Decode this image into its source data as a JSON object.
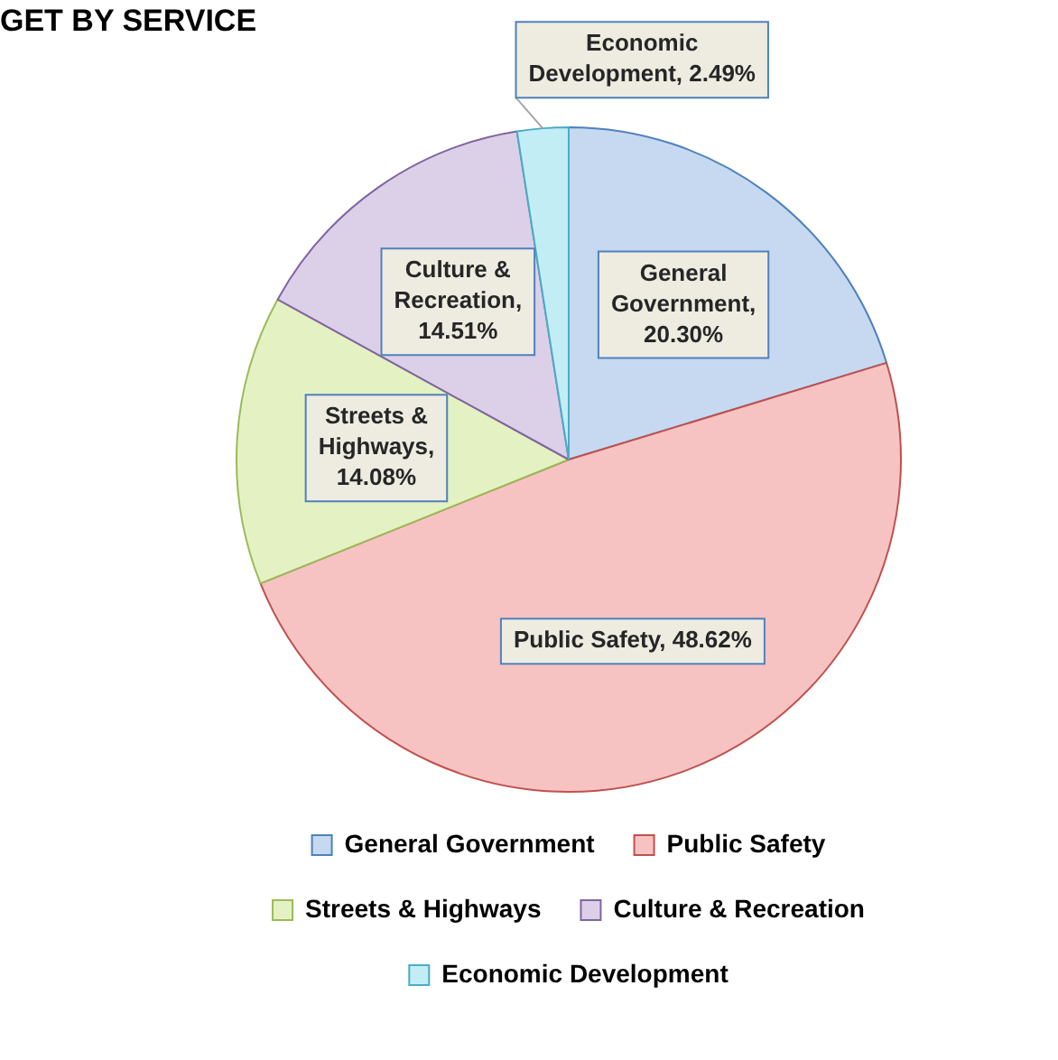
{
  "chart_data": {
    "type": "pie",
    "title": "GET BY SERVICE",
    "categories": [
      "General Government",
      "Public Safety",
      "Streets & Highways",
      "Culture & Recreation",
      "Economic Development"
    ],
    "values": [
      20.3,
      48.62,
      14.08,
      14.51,
      2.49
    ],
    "value_labels": [
      "General Government, 20.30%",
      "Public Safety, 48.62%",
      "Streets & Highways, 14.08%",
      "Culture & Recreation, 14.51%",
      "Economic Development, 2.49%"
    ],
    "colors": [
      "#c6d9f1",
      "#f7c3c2",
      "#e4f2c3",
      "#dcd0e8",
      "#c3edf5"
    ],
    "legend": "bottom"
  }
}
